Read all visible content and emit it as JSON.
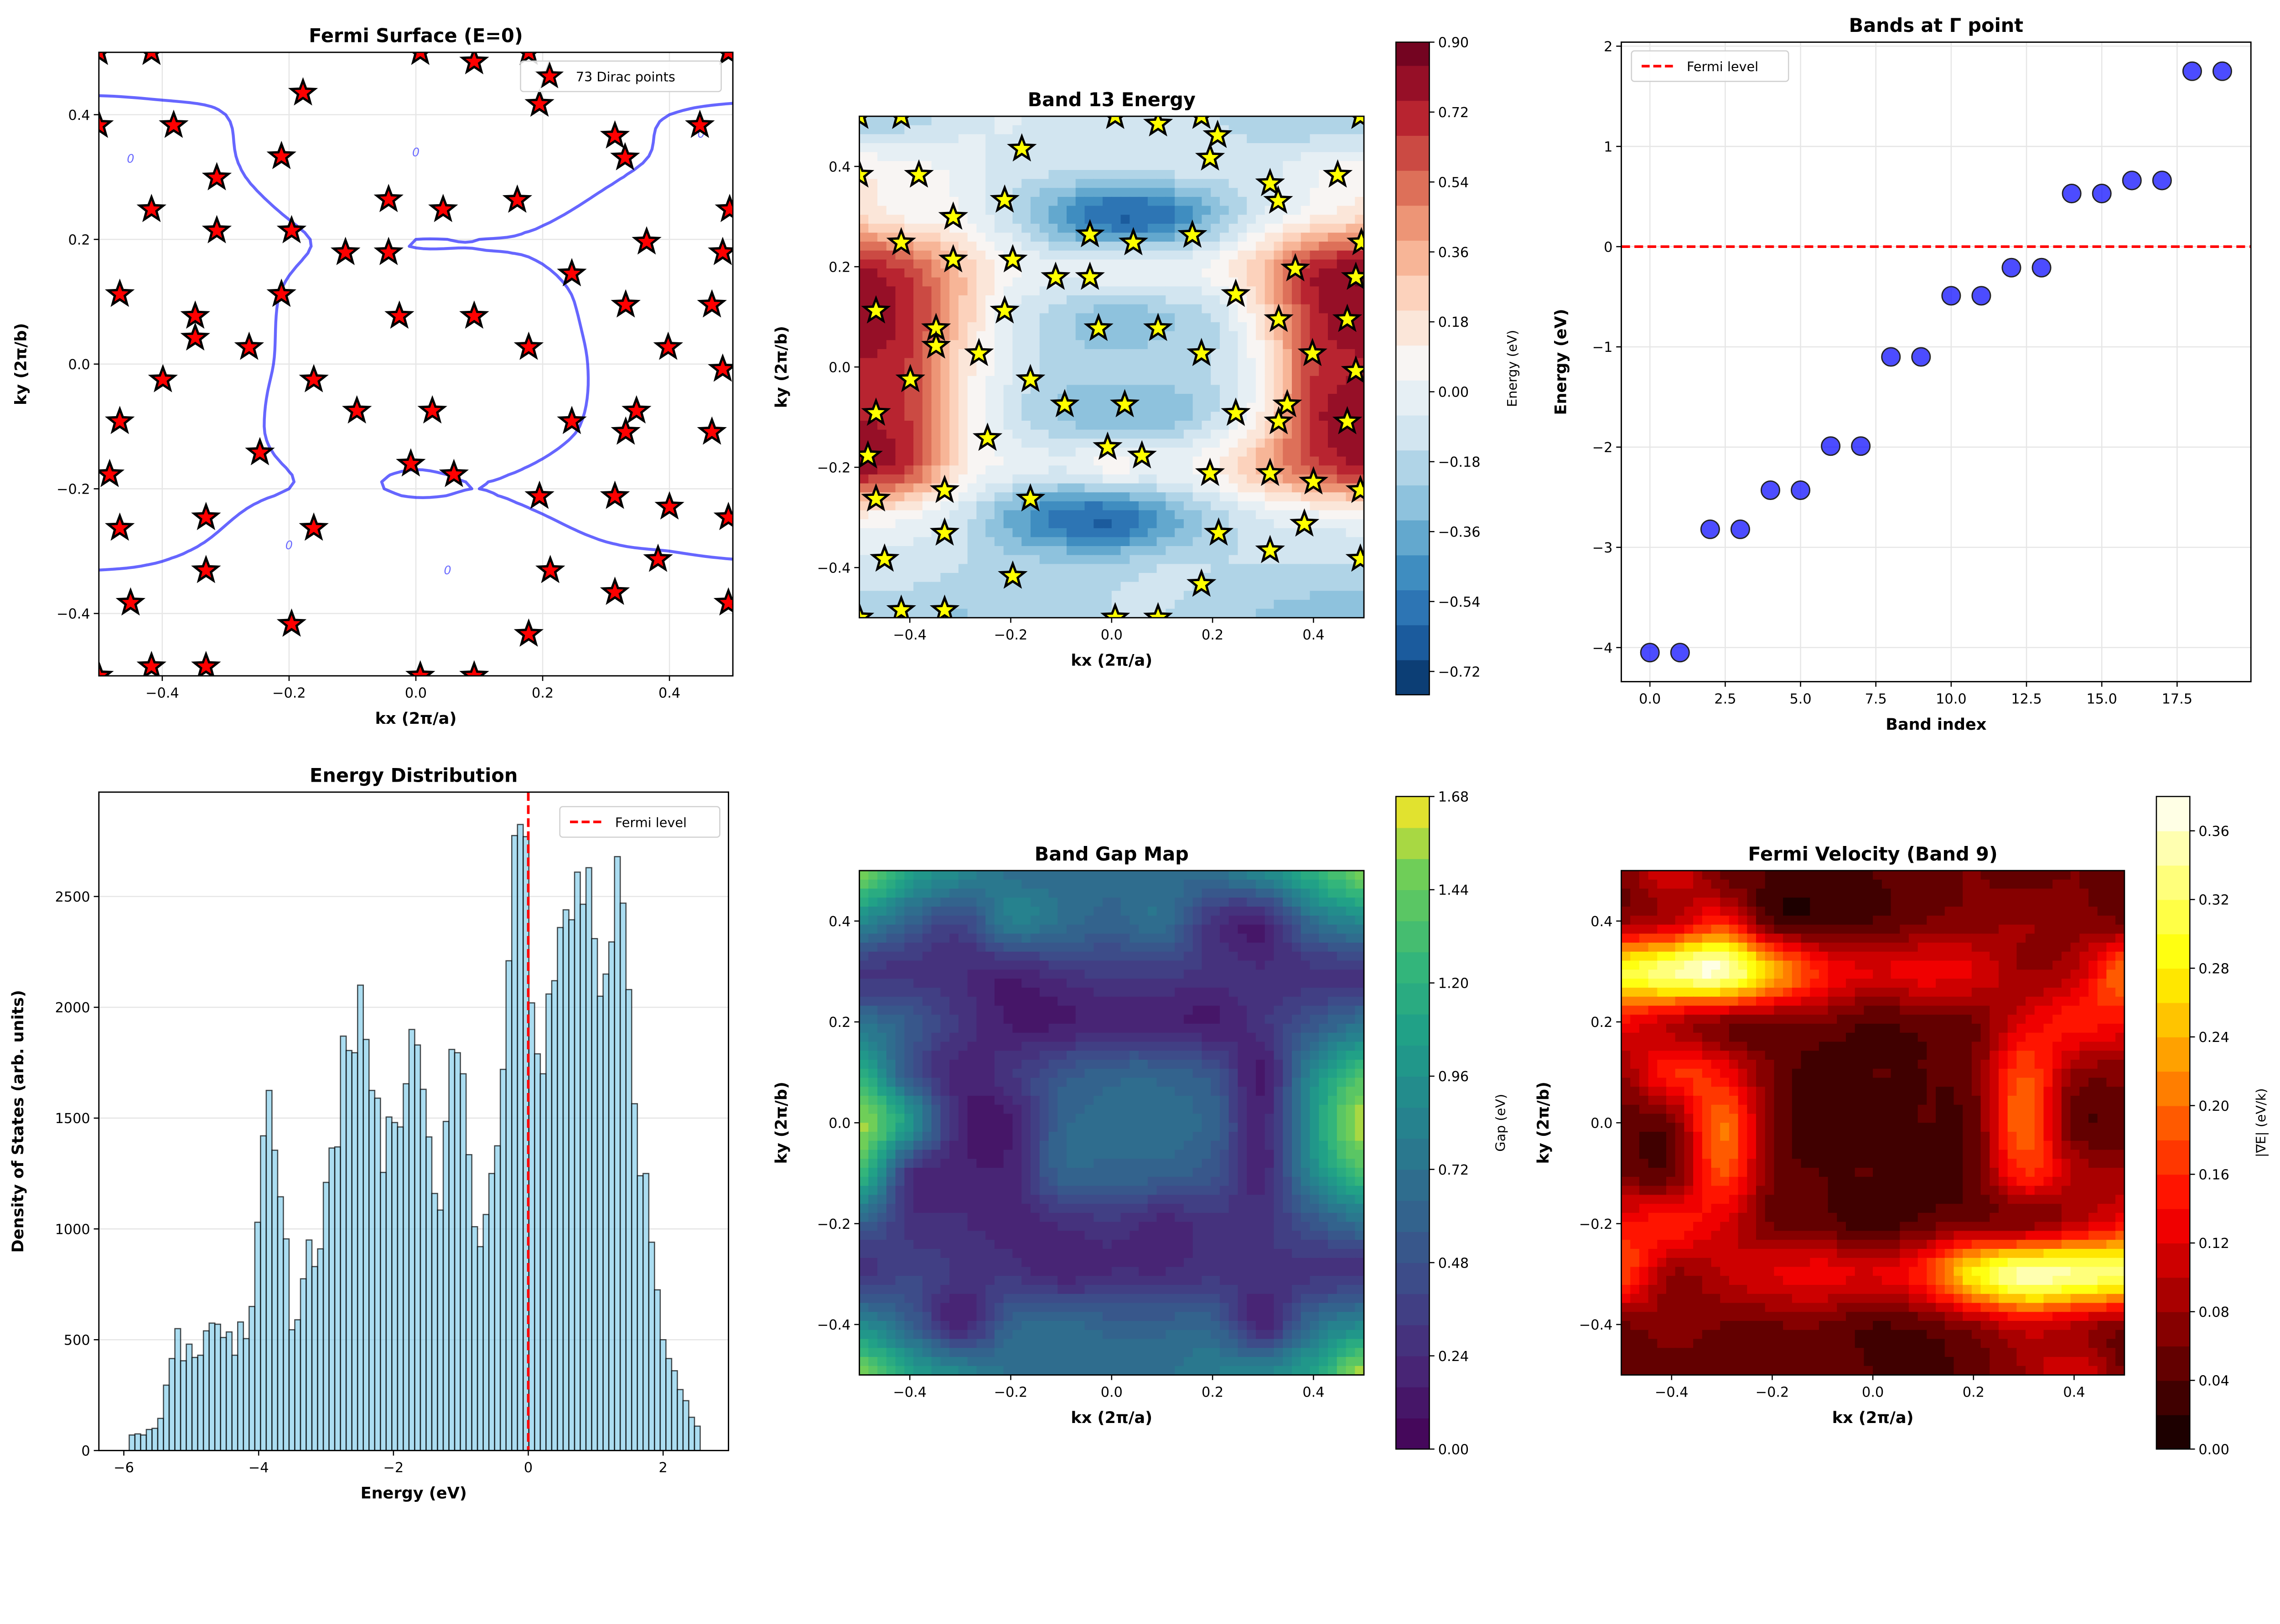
{
  "chart_data": [
    {
      "type": "contour",
      "title": "Fermi Surface (E=0)",
      "xlabel": "kx (2π/a)",
      "ylabel": "ky (2π/b)",
      "xlim": [
        -0.5,
        0.5
      ],
      "ylim": [
        -0.5,
        0.5
      ],
      "grid": true,
      "xticks": [
        -0.4,
        -0.2,
        0.0,
        0.2,
        0.4
      ],
      "xtick_labels": [
        "−0.4",
        "−0.2",
        "0.0",
        "0.2",
        "0.4"
      ],
      "yticks": [
        -0.4,
        -0.2,
        0.0,
        0.2,
        0.4
      ],
      "ytick_labels": [
        "−0.4",
        "−0.2",
        "0.0",
        "0.2",
        "0.4"
      ],
      "contour_level": 0,
      "contour_label": "0",
      "legend": {
        "label": "73 Dirac points",
        "position": "upper right"
      },
      "colors": {
        "contour": "#0000ff",
        "marker": "#ff0000",
        "marker_edge": "#000000"
      },
      "dirac_points": {
        "kx": [
          -0.5,
          -0.417,
          0.007,
          0.092,
          0.178,
          0.493,
          0.21,
          -0.178,
          0.195,
          -0.5,
          -0.382,
          0.448,
          0.314,
          0.33,
          -0.212,
          -0.314,
          -0.043,
          0.16,
          0.043,
          -0.417,
          0.495,
          -0.314,
          -0.196,
          0.364,
          -0.111,
          -0.043,
          0.484,
          0.246,
          -0.467,
          -0.212,
          0.331,
          0.467,
          -0.348,
          -0.026,
          0.092,
          -0.348,
          -0.263,
          0.178,
          0.398,
          -0.399,
          -0.161,
          0.484,
          -0.093,
          0.026,
          0.348,
          -0.467,
          0.246,
          0.331,
          0.467,
          -0.246,
          -0.008,
          0.06,
          -0.483,
          0.195,
          0.314,
          0.4,
          -0.331,
          0.493,
          -0.467,
          -0.161,
          0.382,
          -0.331,
          0.212,
          0.314,
          -0.45,
          0.493,
          -0.196,
          0.178,
          -0.417,
          -0.331,
          -0.5,
          0.007,
          0.092
        ],
        "ky": [
          0.5,
          0.5,
          0.5,
          0.485,
          0.5,
          0.5,
          0.462,
          0.435,
          0.417,
          0.383,
          0.383,
          0.383,
          0.366,
          0.331,
          0.333,
          0.299,
          0.264,
          0.263,
          0.248,
          0.248,
          0.248,
          0.214,
          0.214,
          0.196,
          0.179,
          0.179,
          0.179,
          0.145,
          0.112,
          0.112,
          0.095,
          0.095,
          0.077,
          0.077,
          0.077,
          0.042,
          0.027,
          0.027,
          0.027,
          -0.025,
          -0.025,
          -0.008,
          -0.075,
          -0.075,
          -0.075,
          -0.092,
          -0.092,
          -0.109,
          -0.109,
          -0.142,
          -0.16,
          -0.177,
          -0.177,
          -0.212,
          -0.212,
          -0.229,
          -0.246,
          -0.246,
          -0.263,
          -0.263,
          -0.313,
          -0.331,
          -0.331,
          -0.366,
          -0.383,
          -0.383,
          -0.417,
          -0.433,
          -0.485,
          -0.485,
          -0.5,
          -0.5,
          -0.5
        ]
      }
    },
    {
      "type": "heatmap",
      "title": "Band 13 Energy",
      "xlabel": "kx (2π/a)",
      "ylabel": "ky (2π/b)",
      "xlim": [
        -0.5,
        0.5
      ],
      "ylim": [
        -0.5,
        0.5
      ],
      "xticks": [
        -0.4,
        -0.2,
        0.0,
        0.2,
        0.4
      ],
      "xtick_labels": [
        "−0.4",
        "−0.2",
        "0.0",
        "0.2",
        "0.4"
      ],
      "yticks": [
        -0.4,
        -0.2,
        0.0,
        0.2,
        0.4
      ],
      "ytick_labels": [
        "−0.4",
        "−0.2",
        "0.0",
        "0.2",
        "0.4"
      ],
      "colormap": "RdBu_r",
      "colorbar": {
        "label": "Energy (eV)",
        "range": [
          -0.78,
          0.9
        ],
        "level_step": 0.09,
        "ticks": [
          -0.72,
          -0.54,
          -0.36,
          -0.18,
          0.0,
          0.18,
          0.36,
          0.54,
          0.72,
          0.9
        ],
        "tick_labels": [
          "−0.72",
          "−0.54",
          "−0.36",
          "−0.18",
          "0.00",
          "0.18",
          "0.36",
          "0.54",
          "0.72",
          "0.90"
        ]
      },
      "markers": "dirac_points",
      "marker_color": "#ffff00",
      "grid_kx": [
        -0.5,
        -0.4,
        -0.3,
        -0.2,
        -0.1,
        0.0,
        0.1,
        0.2,
        0.3,
        0.4,
        0.5
      ],
      "grid_ky": [
        0.5,
        0.4,
        0.3,
        0.2,
        0.1,
        0.0,
        -0.1,
        -0.2,
        -0.3,
        -0.4,
        -0.5
      ],
      "values": [
        [
          -0.25,
          -0.2,
          -0.1,
          -0.05,
          -0.1,
          -0.1,
          -0.1,
          -0.15,
          -0.2,
          -0.25,
          -0.25
        ],
        [
          0.1,
          0.05,
          0.0,
          -0.1,
          -0.12,
          -0.12,
          -0.1,
          -0.1,
          -0.1,
          0.0,
          0.05
        ],
        [
          0.2,
          0.1,
          0.05,
          -0.15,
          -0.4,
          -0.6,
          -0.55,
          -0.3,
          -0.05,
          0.1,
          0.2
        ],
        [
          0.75,
          0.6,
          0.3,
          0.05,
          -0.05,
          0.0,
          0.0,
          0.05,
          0.3,
          0.7,
          0.8
        ],
        [
          0.8,
          0.7,
          0.3,
          -0.05,
          -0.2,
          -0.3,
          -0.25,
          -0.15,
          0.2,
          0.7,
          0.8
        ],
        [
          0.75,
          0.65,
          0.2,
          -0.05,
          -0.2,
          -0.2,
          -0.2,
          -0.15,
          0.1,
          0.65,
          0.75
        ],
        [
          0.75,
          0.65,
          0.2,
          -0.1,
          -0.25,
          -0.3,
          -0.3,
          -0.15,
          0.15,
          0.7,
          0.8
        ],
        [
          0.8,
          0.65,
          0.15,
          0.0,
          -0.05,
          0.05,
          0.0,
          0.1,
          0.35,
          0.6,
          0.75
        ],
        [
          0.1,
          0.05,
          -0.1,
          -0.35,
          -0.55,
          -0.6,
          -0.4,
          -0.2,
          -0.05,
          0.0,
          0.05
        ],
        [
          -0.1,
          -0.1,
          -0.15,
          -0.2,
          -0.2,
          -0.2,
          -0.15,
          -0.15,
          -0.15,
          -0.15,
          -0.15
        ],
        [
          -0.2,
          -0.2,
          -0.25,
          -0.2,
          -0.2,
          -0.15,
          -0.15,
          -0.2,
          -0.25,
          -0.3,
          -0.3
        ]
      ]
    },
    {
      "type": "scatter",
      "title": "Bands at Γ point",
      "xlabel": "Band index",
      "ylabel": "Energy (eV)",
      "grid": true,
      "xlim": [
        -0.95,
        19.95
      ],
      "ylim": [
        -4.34,
        2.04
      ],
      "xticks": [
        0,
        2.5,
        5,
        7.5,
        10,
        12.5,
        15,
        17.5
      ],
      "xtick_labels": [
        "0.0",
        "2.5",
        "5.0",
        "7.5",
        "10.0",
        "12.5",
        "15.0",
        "17.5"
      ],
      "yticks": [
        -4,
        -3,
        -2,
        -1,
        0,
        1,
        2
      ],
      "ytick_labels": [
        "−4",
        "−3",
        "−2",
        "−1",
        "0",
        "1",
        "2"
      ],
      "x": [
        0,
        1,
        2,
        3,
        4,
        5,
        6,
        7,
        8,
        9,
        10,
        11,
        12,
        13,
        14,
        15,
        16,
        17,
        18,
        19
      ],
      "y": [
        -4.05,
        -4.05,
        -2.82,
        -2.82,
        -2.43,
        -2.43,
        -1.99,
        -1.99,
        -1.1,
        -1.1,
        -0.49,
        -0.49,
        -0.21,
        -0.21,
        0.53,
        0.53,
        0.66,
        0.66,
        1.75,
        1.75
      ],
      "marker_color": "#0000ff",
      "reference_line": {
        "y": 0,
        "label": "Fermi level",
        "color": "#ff0000",
        "style": "dashed"
      },
      "legend": {
        "label": "Fermi level",
        "position": "upper left"
      }
    },
    {
      "type": "bar",
      "title": "Energy Distribution",
      "xlabel": "Energy (eV)",
      "ylabel": "Density of States (arb. units)",
      "grid": "y",
      "xlim": [
        -6.37,
        2.97
      ],
      "ylim": [
        0,
        2971
      ],
      "xticks": [
        -6,
        -4,
        -2,
        0,
        2
      ],
      "xtick_labels": [
        "−6",
        "−4",
        "−2",
        "0",
        "2"
      ],
      "yticks": [
        0,
        500,
        1000,
        1500,
        2000,
        2500
      ],
      "ytick_labels": [
        "0",
        "500",
        "1000",
        "1500",
        "2000",
        "2500"
      ],
      "bin_range": [
        -5.92,
        2.55
      ],
      "bar_color": "#87ceeb",
      "counts": [
        70,
        75,
        70,
        95,
        100,
        145,
        295,
        415,
        550,
        405,
        480,
        420,
        430,
        540,
        575,
        570,
        510,
        535,
        430,
        580,
        505,
        650,
        1030,
        1420,
        1625,
        1355,
        1145,
        955,
        545,
        590,
        775,
        950,
        830,
        910,
        1210,
        1365,
        1370,
        1870,
        1805,
        1795,
        2100,
        1855,
        1625,
        1590,
        1255,
        1505,
        1480,
        1460,
        1655,
        1900,
        1830,
        1630,
        1415,
        1160,
        1085,
        1485,
        1810,
        1795,
        1700,
        1335,
        1010,
        920,
        1065,
        1250,
        1375,
        1720,
        2210,
        2775,
        2825,
        2770,
        2020,
        1790,
        1700,
        2060,
        2120,
        2360,
        2440,
        2395,
        2610,
        2465,
        2630,
        2310,
        2050,
        2150,
        2295,
        2680,
        2470,
        2080,
        1565,
        1240,
        1250,
        940,
        725,
        500,
        415,
        360,
        275,
        225,
        150,
        110
      ],
      "reference_line": {
        "x": 0,
        "label": "Fermi level",
        "color": "#ff0000",
        "style": "dashed"
      },
      "legend": {
        "label": "Fermi level",
        "position": "upper right"
      }
    },
    {
      "type": "heatmap",
      "title": "Band Gap Map",
      "xlabel": "kx (2π/a)",
      "ylabel": "ky (2π/b)",
      "xlim": [
        -0.5,
        0.5
      ],
      "ylim": [
        -0.5,
        0.5
      ],
      "xticks": [
        -0.4,
        -0.2,
        0.0,
        0.2,
        0.4
      ],
      "xtick_labels": [
        "−0.4",
        "−0.2",
        "0.0",
        "0.2",
        "0.4"
      ],
      "yticks": [
        -0.4,
        -0.2,
        0.0,
        0.2,
        0.4
      ],
      "ytick_labels": [
        "−0.4",
        "−0.2",
        "0.0",
        "0.2",
        "0.4"
      ],
      "colormap": "viridis",
      "colorbar": {
        "label": "Gap (eV)",
        "range": [
          0,
          1.68
        ],
        "level_step": 0.08,
        "ticks": [
          0,
          0.24,
          0.48,
          0.72,
          0.96,
          1.2,
          1.44,
          1.68
        ],
        "tick_labels": [
          "0.00",
          "0.24",
          "0.48",
          "0.72",
          "0.96",
          "1.20",
          "1.44",
          "1.68"
        ]
      },
      "grid_kx": [
        -0.5,
        -0.4,
        -0.3,
        -0.2,
        -0.1,
        0.0,
        0.1,
        0.2,
        0.3,
        0.4,
        0.5
      ],
      "grid_ky": [
        0.5,
        0.4,
        0.3,
        0.2,
        0.1,
        0.0,
        -0.1,
        -0.2,
        -0.3,
        -0.4,
        -0.5
      ],
      "values": [
        [
          1.5,
          1.1,
          0.9,
          0.7,
          0.65,
          0.65,
          0.65,
          0.7,
          0.9,
          1.2,
          1.5
        ],
        [
          0.9,
          0.6,
          0.4,
          0.8,
          0.7,
          0.6,
          0.7,
          0.3,
          0.2,
          0.7,
          0.9
        ],
        [
          0.3,
          0.3,
          0.25,
          0.2,
          0.3,
          0.35,
          0.35,
          0.3,
          0.25,
          0.3,
          0.3
        ],
        [
          0.7,
          0.55,
          0.3,
          0.15,
          0.15,
          0.2,
          0.2,
          0.15,
          0.3,
          0.5,
          0.7
        ],
        [
          1.2,
          0.5,
          0.2,
          0.3,
          0.5,
          0.6,
          0.6,
          0.5,
          0.15,
          0.9,
          1.3
        ],
        [
          1.55,
          1.0,
          0.2,
          0.15,
          0.6,
          0.65,
          0.65,
          0.6,
          0.2,
          1.0,
          1.6
        ],
        [
          1.3,
          0.3,
          0.2,
          0.2,
          0.6,
          0.6,
          0.6,
          0.5,
          0.2,
          0.9,
          1.3
        ],
        [
          0.6,
          0.3,
          0.25,
          0.2,
          0.25,
          0.3,
          0.2,
          0.3,
          0.3,
          0.5,
          0.7
        ],
        [
          0.3,
          0.4,
          0.3,
          0.3,
          0.2,
          0.25,
          0.25,
          0.3,
          0.3,
          0.3,
          0.3
        ],
        [
          0.9,
          0.6,
          0.2,
          0.6,
          0.65,
          0.6,
          0.6,
          0.6,
          0.2,
          0.7,
          0.9
        ],
        [
          1.5,
          1.1,
          0.9,
          0.7,
          0.7,
          0.7,
          0.7,
          0.8,
          0.9,
          1.1,
          1.6
        ]
      ]
    },
    {
      "type": "heatmap",
      "title": "Fermi Velocity (Band 9)",
      "xlabel": "kx (2π/a)",
      "ylabel": "ky (2π/b)",
      "xlim": [
        -0.5,
        0.5
      ],
      "ylim": [
        -0.5,
        0.5
      ],
      "xticks": [
        -0.4,
        -0.2,
        0.0,
        0.2,
        0.4
      ],
      "xtick_labels": [
        "−0.4",
        "−0.2",
        "0.0",
        "0.2",
        "0.4"
      ],
      "yticks": [
        -0.4,
        -0.2,
        0.0,
        0.2,
        0.4
      ],
      "ytick_labels": [
        "−0.4",
        "−0.2",
        "0.0",
        "0.2",
        "0.4"
      ],
      "colormap": "hot",
      "colorbar": {
        "label": "|∇E| (eV/k)",
        "range": [
          0,
          0.38
        ],
        "level_step": 0.02,
        "ticks": [
          0,
          0.04,
          0.08,
          0.12,
          0.16,
          0.2,
          0.24,
          0.28,
          0.32,
          0.36
        ],
        "tick_labels": [
          "0.00",
          "0.04",
          "0.08",
          "0.12",
          "0.16",
          "0.20",
          "0.24",
          "0.28",
          "0.32",
          "0.36"
        ]
      },
      "grid_kx": [
        -0.5,
        -0.4,
        -0.3,
        -0.2,
        -0.1,
        0.0,
        0.1,
        0.2,
        0.3,
        0.4,
        0.5
      ],
      "grid_ky": [
        0.5,
        0.4,
        0.3,
        0.2,
        0.1,
        0.0,
        -0.1,
        -0.2,
        -0.3,
        -0.4,
        -0.5
      ],
      "values": [
        [
          0.06,
          0.12,
          0.05,
          0.04,
          0.03,
          0.04,
          0.05,
          0.06,
          0.05,
          0.06,
          0.05
        ],
        [
          0.08,
          0.1,
          0.15,
          0.04,
          0.03,
          0.04,
          0.06,
          0.07,
          0.08,
          0.07,
          0.06
        ],
        [
          0.3,
          0.34,
          0.36,
          0.25,
          0.15,
          0.12,
          0.13,
          0.12,
          0.08,
          0.1,
          0.2
        ],
        [
          0.14,
          0.1,
          0.07,
          0.06,
          0.06,
          0.04,
          0.05,
          0.06,
          0.12,
          0.15,
          0.14
        ],
        [
          0.08,
          0.16,
          0.14,
          0.06,
          0.03,
          0.04,
          0.04,
          0.06,
          0.18,
          0.08,
          0.07
        ],
        [
          0.05,
          0.06,
          0.2,
          0.06,
          0.03,
          0.03,
          0.04,
          0.05,
          0.2,
          0.05,
          0.05
        ],
        [
          0.06,
          0.05,
          0.18,
          0.06,
          0.04,
          0.04,
          0.03,
          0.05,
          0.16,
          0.1,
          0.08
        ],
        [
          0.14,
          0.15,
          0.12,
          0.06,
          0.05,
          0.03,
          0.05,
          0.07,
          0.07,
          0.1,
          0.14
        ],
        [
          0.18,
          0.08,
          0.1,
          0.12,
          0.13,
          0.12,
          0.16,
          0.28,
          0.35,
          0.34,
          0.32
        ],
        [
          0.06,
          0.07,
          0.06,
          0.06,
          0.06,
          0.04,
          0.05,
          0.08,
          0.12,
          0.1,
          0.07
        ],
        [
          0.05,
          0.05,
          0.05,
          0.05,
          0.06,
          0.04,
          0.03,
          0.05,
          0.08,
          0.12,
          0.06
        ]
      ]
    }
  ]
}
